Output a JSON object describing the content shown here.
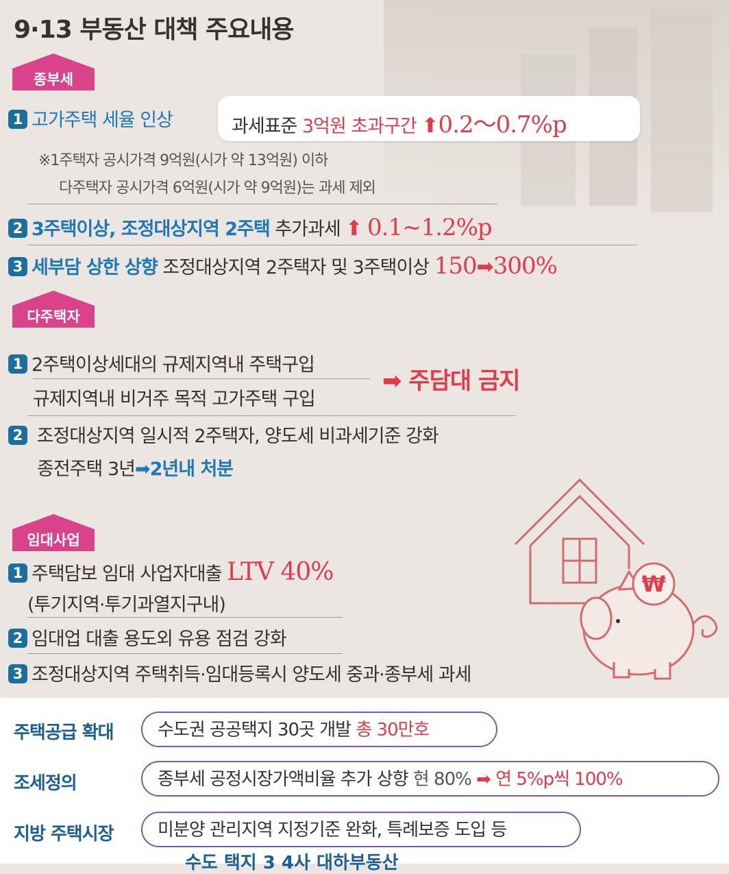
{
  "title": "9·13 부동산 대책 주요내용",
  "sections": {
    "jongbuse": {
      "badge": "종부세",
      "item1": {
        "num": "1",
        "label": "고가주택 세율 인상",
        "box_prefix": "과세표준 ",
        "box_highlight": "3억원 초과구간",
        "box_value": "0.2～0.7%p",
        "note1": "※1주택자 공시가격 9억원(시가 약 13억원) 이하",
        "note2": "다주택자 공시가격 6억원(시가 약 9억원)는 과세 제외"
      },
      "item2": {
        "num": "2",
        "label": "3주택이상, 조정대상지역 2주택",
        "text": " 추가과세 ",
        "value": "0.1~1.2%p"
      },
      "item3": {
        "num": "3",
        "label": "세부담 상한 상향",
        "text": " 조정대상지역 2주택자 및 3주택이상 ",
        "from": "150",
        "to": "300%"
      }
    },
    "dajutaekja": {
      "badge": "다주택자",
      "item1": {
        "num": "1",
        "line1": "2주택이상세대의 규제지역내 주택구입",
        "line2": "규제지역내 비거주 목적 고가주택 구입",
        "result": "주담대 금지"
      },
      "item2": {
        "num": "2",
        "line1": "조정대상지역 일시적 2주택자, 양도세 비과세기준 강화",
        "line2_prefix": "종전주택 3년",
        "line2_highlight": "2년내 처분"
      }
    },
    "imdae": {
      "badge": "임대사업",
      "item1": {
        "num": "1",
        "text": "주택담보 임대 사업자대출 ",
        "value": "LTV 40%",
        "sub": "(투기지역·투기과열지구내)"
      },
      "item2": {
        "num": "2",
        "text": "임대업 대출 용도외 유용 점검 강화"
      },
      "item3": {
        "num": "3",
        "text": "조정대상지역 주택취득·임대등록시 양도세 중과·종부세 과세"
      }
    }
  },
  "bottom": {
    "row1": {
      "label": "주택공급 확대",
      "text": "수도권 공공택지 30곳 개발 ",
      "highlight": "총 30만호"
    },
    "row2": {
      "label": "조세정의",
      "text": "종부세 공정시장가액비율 추가 상향 ",
      "current": "현 80%",
      "highlight": "연 5%p씩 100%"
    },
    "row3": {
      "label": "지방 주택시장",
      "text": "미분양 관리지역 지정기준 완화, 특례보증 도입 등"
    },
    "cutoff": "수도 택지 3 4사 대하부동산"
  },
  "icons": {
    "house": "house-icon",
    "piggy": "piggy-bank-icon",
    "coin_symbol": "₩"
  },
  "colors": {
    "badge_pink": "#d8438a",
    "number_blue": "#1c6f9c",
    "highlight_red": "#e23b4a",
    "label_blue": "#1d78b4",
    "box_border_purple": "#7e5aa2",
    "illustration_red": "#d26b6b"
  }
}
